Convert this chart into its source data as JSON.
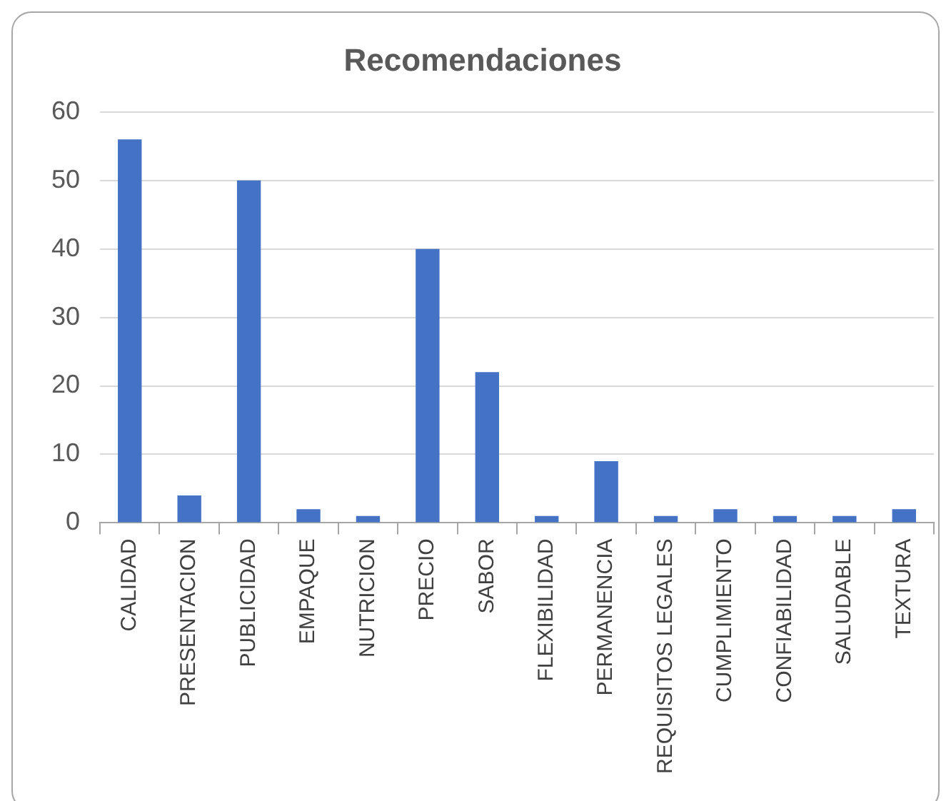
{
  "chart_data": {
    "type": "bar",
    "title": "Recomendaciones",
    "categories": [
      "CALIDAD",
      "PRESENTACION",
      "PUBLICIDAD",
      "EMPAQUE",
      "NUTRICION",
      "PRECIO",
      "SABOR",
      "FLEXIBILIDAD",
      "PERMANENCIA",
      "REQUISITOS LEGALES",
      "CUMPLIMIENTO",
      "CONFIABILIDAD",
      "SALUDABLE",
      "TEXTURA"
    ],
    "values": [
      56,
      4,
      50,
      2,
      1,
      40,
      22,
      1,
      9,
      1,
      2,
      1,
      1,
      2
    ],
    "color": "#4472c4",
    "ylim": [
      0,
      60
    ],
    "yticks": [
      0,
      10,
      20,
      30,
      40,
      50,
      60
    ],
    "grid": "y",
    "legend": false
  }
}
